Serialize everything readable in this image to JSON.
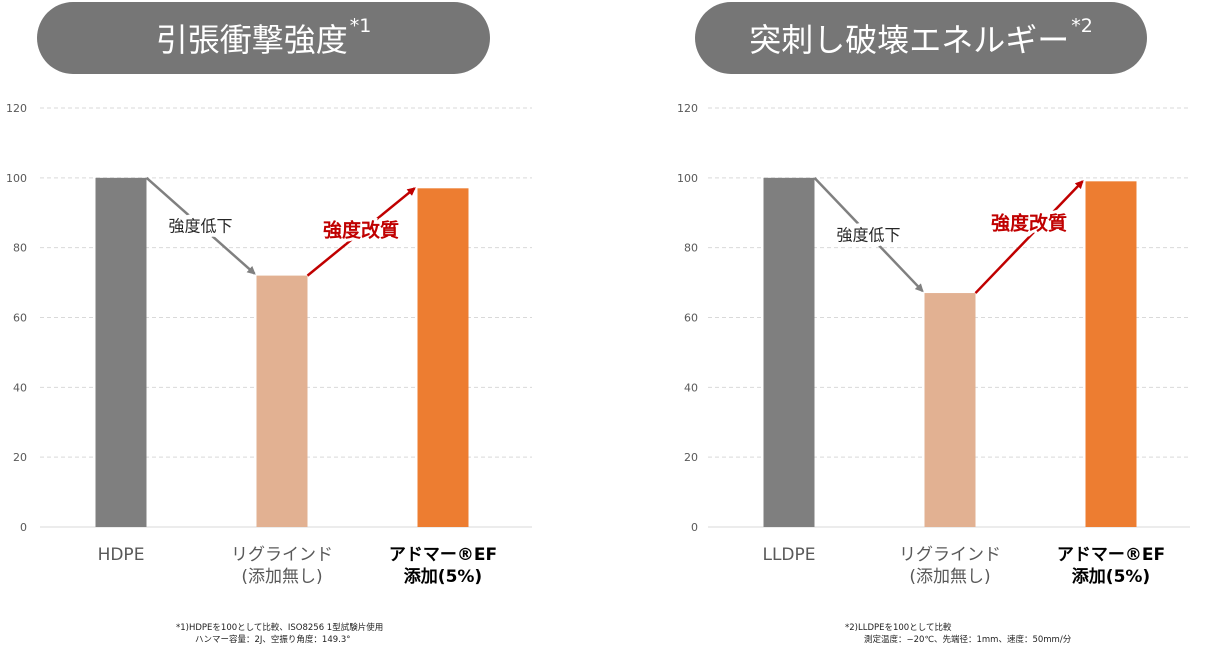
{
  "colors": {
    "gray_bar": "#7f7f7f",
    "light_bar": "#e2b192",
    "orange_bar": "#ed7d31",
    "accent_red": "#c00000",
    "arrow_gray": "#808080",
    "pill": "#767676"
  },
  "panels": [
    {
      "title": "引張衝撃強度",
      "title_mark": "*1",
      "annotation_down": "強度低下",
      "annotation_up": "強度改質",
      "footnote_line1": "*1)HDPEを100として比較、ISO8256 1型試験片使用",
      "footnote_line2": "ハンマー容量：2J、空振り角度：149.3°"
    },
    {
      "title": "突刺し破壊エネルギー",
      "title_mark": "*2",
      "annotation_down": "強度低下",
      "annotation_up": "強度改質",
      "footnote_line1": "*2)LLDPEを100として比較",
      "footnote_line2": "測定温度：−20℃、先端径：1mm、速度：50mm/分"
    }
  ],
  "chart_data": [
    {
      "type": "bar",
      "title": "引張衝撃強度*1",
      "categories": [
        "HDPE",
        "リグラインド\n(添加無し)",
        "アドマー®EF\n添加(5%)"
      ],
      "values": [
        100,
        72,
        97
      ],
      "bar_colors": [
        "#7f7f7f",
        "#e2b192",
        "#ed7d31"
      ],
      "ylim": [
        0,
        120
      ],
      "yticks": [
        0,
        20,
        40,
        60,
        80,
        100,
        120
      ],
      "grid": true,
      "legend": "none"
    },
    {
      "type": "bar",
      "title": "突刺し破壊エネルギー*2",
      "categories": [
        "LLDPE",
        "リグラインド\n(添加無し)",
        "アドマー®EF\n添加(5%)"
      ],
      "values": [
        100,
        67,
        99
      ],
      "bar_colors": [
        "#7f7f7f",
        "#e2b192",
        "#ed7d31"
      ],
      "ylim": [
        0,
        120
      ],
      "yticks": [
        0,
        20,
        40,
        60,
        80,
        100,
        120
      ],
      "grid": true,
      "legend": "none"
    }
  ]
}
